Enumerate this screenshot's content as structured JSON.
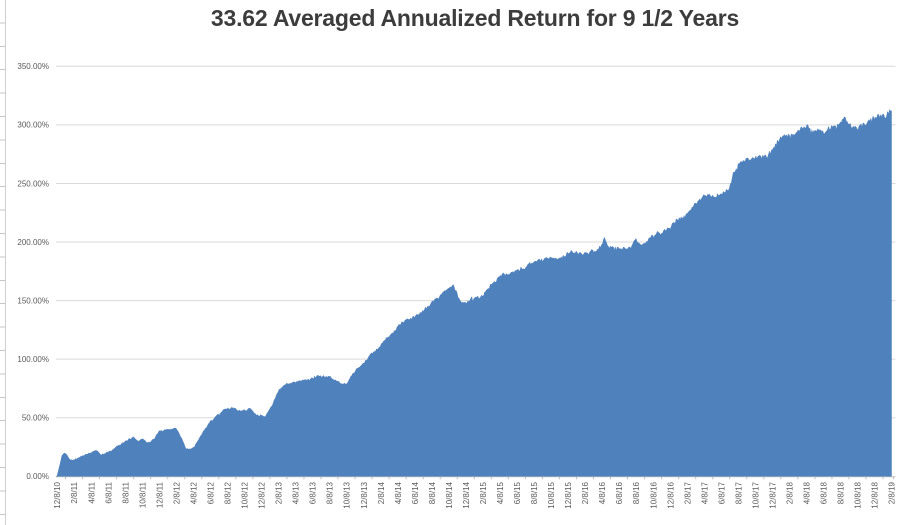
{
  "chart_data": {
    "type": "area",
    "title": "33.62 Averaged Annualized Return for 9 1/2 Years",
    "ylabel": "",
    "xlabel": "",
    "ylim": [
      0,
      350
    ],
    "grid": true,
    "legend": "none",
    "y_tick_labels": [
      "0.00%",
      "50.00%",
      "100.00%",
      "150.00%",
      "200.00%",
      "250.00%",
      "300.00%",
      "350.00%"
    ],
    "y_tick_values": [
      0,
      50,
      100,
      150,
      200,
      250,
      300,
      350
    ],
    "x_labels": [
      "12/8/10",
      "2/8/11",
      "4/8/11",
      "6/8/11",
      "8/8/11",
      "10/8/11",
      "12/8/11",
      "2/8/12",
      "4/8/12",
      "6/8/12",
      "8/8/12",
      "10/8/12",
      "12/8/12",
      "2/8/13",
      "4/8/13",
      "6/8/13",
      "8/8/13",
      "10/8/13",
      "12/8/13",
      "2/8/14",
      "4/8/14",
      "6/8/14",
      "8/8/14",
      "10/8/14",
      "12/8/14",
      "2/8/15",
      "4/8/15",
      "6/8/15",
      "8/8/15",
      "10/8/15",
      "12/8/15",
      "2/8/16",
      "4/8/16",
      "6/8/16",
      "8/8/16",
      "10/8/16",
      "12/8/16",
      "2/8/17",
      "4/8/17",
      "6/8/17",
      "8/8/17",
      "10/8/17",
      "12/8/17",
      "2/8/18",
      "4/8/18",
      "6/8/18",
      "8/8/18",
      "10/8/18",
      "12/8/18",
      "2/8/19"
    ],
    "values_at_labels_pct": [
      0,
      14,
      20,
      21,
      29,
      32,
      38,
      41,
      24,
      47,
      57,
      56,
      52,
      73,
      81,
      84,
      85,
      80,
      96,
      112,
      128,
      136,
      148,
      162,
      147,
      156,
      170,
      177,
      183,
      186,
      190,
      192,
      197,
      195,
      204,
      204,
      214,
      226,
      238,
      242,
      265,
      271,
      279,
      290,
      299,
      296,
      301,
      296,
      307,
      312
    ],
    "keypoints": [
      [
        0,
        0
      ],
      [
        0.12,
        7
      ],
      [
        0.3,
        18
      ],
      [
        0.45,
        21
      ],
      [
        0.6,
        18
      ],
      [
        0.8,
        14.5
      ],
      [
        1,
        14
      ],
      [
        1.4,
        17
      ],
      [
        2,
        20
      ],
      [
        2.3,
        22.5
      ],
      [
        2.6,
        19
      ],
      [
        3,
        21
      ],
      [
        3.5,
        25
      ],
      [
        4,
        29
      ],
      [
        4.5,
        33.5
      ],
      [
        4.75,
        30.5
      ],
      [
        5,
        32
      ],
      [
        5.3,
        29
      ],
      [
        5.7,
        31
      ],
      [
        6,
        38
      ],
      [
        6.5,
        40
      ],
      [
        7,
        41
      ],
      [
        7.3,
        33
      ],
      [
        7.6,
        23.5
      ],
      [
        8,
        24
      ],
      [
        8.4,
        33
      ],
      [
        9,
        47
      ],
      [
        9.5,
        53
      ],
      [
        10,
        57
      ],
      [
        10.35,
        58.5
      ],
      [
        10.6,
        55
      ],
      [
        11,
        56
      ],
      [
        11.35,
        57.5
      ],
      [
        11.7,
        52
      ],
      [
        12,
        52
      ],
      [
        12.25,
        51
      ],
      [
        12.6,
        60
      ],
      [
        13,
        73
      ],
      [
        13.4,
        78
      ],
      [
        14,
        81
      ],
      [
        14.5,
        83
      ],
      [
        15,
        84
      ],
      [
        15.35,
        86
      ],
      [
        16,
        85
      ],
      [
        16.4,
        81.5
      ],
      [
        16.8,
        79.5
      ],
      [
        17,
        80
      ],
      [
        17.5,
        89
      ],
      [
        18,
        96
      ],
      [
        18.5,
        104
      ],
      [
        19,
        112
      ],
      [
        19.5,
        120
      ],
      [
        20,
        128
      ],
      [
        20.5,
        132
      ],
      [
        21,
        136
      ],
      [
        21.5,
        141
      ],
      [
        22,
        148
      ],
      [
        22.5,
        155
      ],
      [
        23,
        162
      ],
      [
        23.25,
        163.5
      ],
      [
        23.65,
        150
      ],
      [
        24,
        147
      ],
      [
        24.4,
        153
      ],
      [
        25,
        156
      ],
      [
        25.5,
        164
      ],
      [
        26,
        170
      ],
      [
        26.15,
        172.5
      ],
      [
        27,
        177
      ],
      [
        27.5,
        180
      ],
      [
        28,
        183
      ],
      [
        28.5,
        185
      ],
      [
        29,
        186
      ],
      [
        29.5,
        188
      ],
      [
        30,
        190
      ],
      [
        31,
        192
      ],
      [
        31.8,
        194
      ],
      [
        32,
        197
      ],
      [
        32.15,
        202
      ],
      [
        32.35,
        195
      ],
      [
        33,
        195
      ],
      [
        33.7,
        196
      ],
      [
        33.95,
        204.5
      ],
      [
        34.25,
        199
      ],
      [
        34.6,
        201
      ],
      [
        35,
        204
      ],
      [
        35.5,
        208
      ],
      [
        36,
        214
      ],
      [
        36.5,
        220
      ],
      [
        37,
        226
      ],
      [
        37.5,
        233
      ],
      [
        38,
        238
      ],
      [
        38.4,
        240
      ],
      [
        39,
        242
      ],
      [
        39.45,
        245
      ],
      [
        39.75,
        259
      ],
      [
        40,
        265
      ],
      [
        40.5,
        269
      ],
      [
        41,
        271
      ],
      [
        41.6,
        274
      ],
      [
        42,
        279
      ],
      [
        42.5,
        287
      ],
      [
        43,
        290
      ],
      [
        43.6,
        297
      ],
      [
        44,
        299
      ],
      [
        44.3,
        293
      ],
      [
        44.7,
        298
      ],
      [
        45,
        296
      ],
      [
        45.5,
        300
      ],
      [
        46,
        301
      ],
      [
        46.35,
        303.5
      ],
      [
        46.7,
        297
      ],
      [
        47,
        296
      ],
      [
        47.5,
        301
      ],
      [
        48,
        307
      ],
      [
        48.6,
        310
      ],
      [
        49,
        312
      ]
    ],
    "colors": {
      "series_fill": "#4f81bd",
      "gridline": "#d9d9d9",
      "axis_line": "#bfbfbf",
      "tick_label": "#595959",
      "title": "#3c3c3c"
    }
  }
}
